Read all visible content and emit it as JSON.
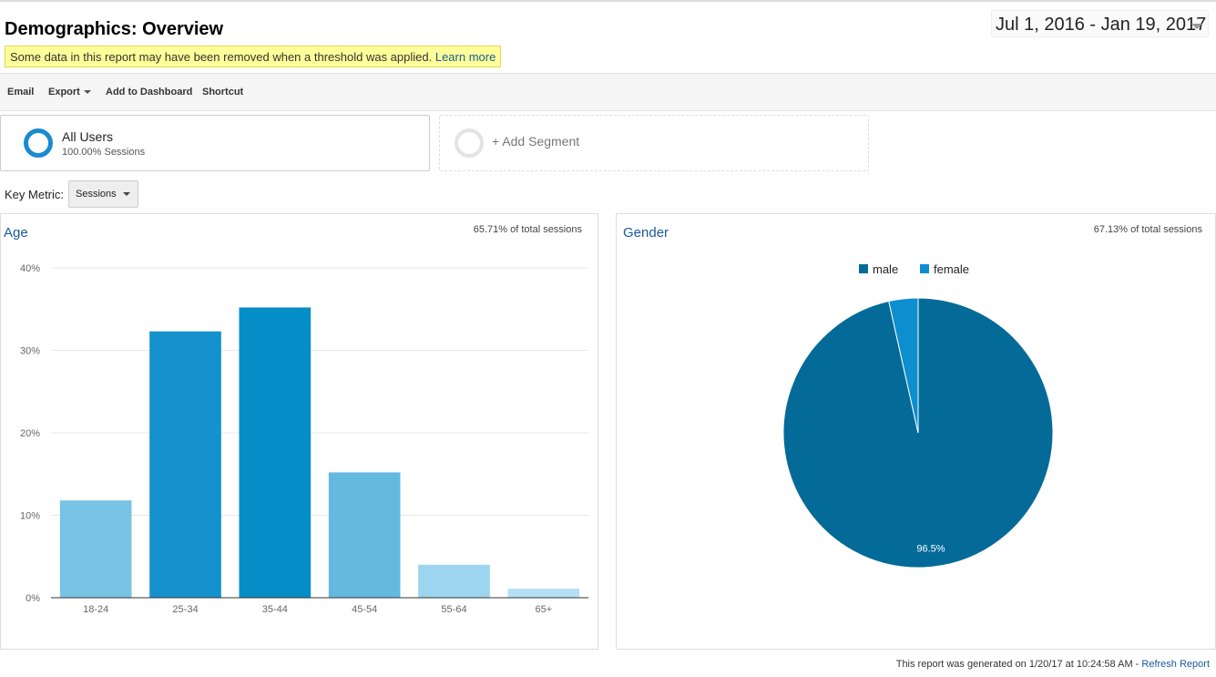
{
  "page": {
    "title": "Demographics: Overview",
    "date_range": "Jul 1, 2016 - Jan 19, 2017"
  },
  "notice": {
    "text": "Some data in this report may have been removed when a threshold was applied.",
    "link": "Learn more"
  },
  "toolbar": {
    "email": "Email",
    "export": "Export",
    "add_to_dashboard": "Add to Dashboard",
    "shortcut": "Shortcut"
  },
  "segments": {
    "active": {
      "name": "All Users",
      "sub": "100.00% Sessions",
      "color": "#1a8bd0"
    },
    "add_label": "+ Add Segment"
  },
  "key_metric": {
    "label": "Key Metric:",
    "value": "Sessions"
  },
  "age_panel": {
    "title": "Age",
    "note": "65.71% of total sessions"
  },
  "gender_panel": {
    "title": "Gender",
    "note": "67.13% of total sessions"
  },
  "chart_data": [
    {
      "type": "bar",
      "title": "Age",
      "categories": [
        "18-24",
        "25-34",
        "35-44",
        "45-54",
        "55-64",
        "65+"
      ],
      "values": [
        11.8,
        32.3,
        35.2,
        15.2,
        4.0,
        1.1
      ],
      "colors": [
        "#78c3e4",
        "#1591cd",
        "#058dc7",
        "#64b9e0",
        "#9dd5f0",
        "#b5e0f4"
      ],
      "yticks": [
        "0%",
        "10%",
        "20%",
        "30%",
        "40%"
      ],
      "ylim": [
        0,
        40
      ],
      "grid": true
    },
    {
      "type": "pie",
      "title": "Gender",
      "legend_position": "top",
      "slices": [
        {
          "name": "male",
          "value": 96.5,
          "label": "96.5%",
          "color": "#046b98"
        },
        {
          "name": "female",
          "value": 3.5,
          "color": "#0d8ecf"
        }
      ]
    }
  ],
  "footer": {
    "text": "This report was generated on 1/20/17 at 10:24:58 AM -",
    "link": "Refresh Report"
  }
}
